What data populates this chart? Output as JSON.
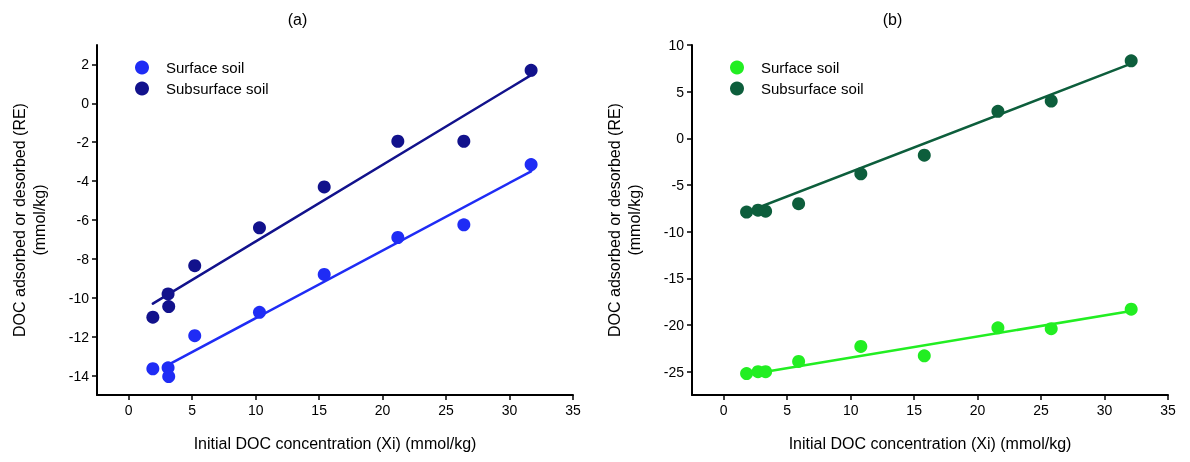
{
  "chart_data": [
    {
      "type": "scatter",
      "title": "(a)",
      "xlabel": "Initial DOC concentration (Xi) (mmol/kg)",
      "ylabel": "DOC adsorbed or desorbed (RE)\n(mmol/kg)",
      "xlim": [
        -2.5,
        35
      ],
      "ylim": [
        -15,
        3
      ],
      "xticks": [
        0,
        5,
        10,
        15,
        20,
        25,
        30,
        35
      ],
      "yticks": [
        -14,
        -12,
        -10,
        -8,
        -6,
        -4,
        -2,
        0,
        2
      ],
      "grid": false,
      "legend": "top left",
      "marker": "circle",
      "series": [
        {
          "name": "Surface soil",
          "color": "#1f2cf5",
          "x": [
            1.9,
            3.1,
            3.15,
            5.2,
            10.3,
            15.4,
            21.2,
            26.4,
            31.7
          ],
          "values": [
            -13.65,
            -13.6,
            -14.05,
            -11.95,
            -10.75,
            -8.8,
            -6.9,
            -6.25,
            -3.15
          ]
        },
        {
          "name": "Subsurface soil",
          "color": "#12128c",
          "x": [
            1.9,
            3.1,
            3.15,
            5.2,
            10.3,
            15.4,
            21.2,
            26.4,
            31.7
          ],
          "values": [
            -11,
            -9.8,
            -10.45,
            -8.35,
            -6.4,
            -4.3,
            -1.95,
            -1.95,
            1.7
          ]
        },
        {
          "type": "line",
          "marker": "none",
          "color": "#1f2cf5",
          "x": [
            3.1,
            31.7
          ],
          "values": [
            -13.45,
            -3.5
          ]
        },
        {
          "type": "line",
          "marker": "none",
          "color": "#12128c",
          "x": [
            1.9,
            31.7
          ],
          "values": [
            -10.3,
            1.45
          ]
        }
      ]
    },
    {
      "type": "scatter",
      "title": "(b)",
      "xlabel": "Initial DOC concentration (Xi) (mmol/kg)",
      "ylabel": "DOC adsorbed or desorbed (RE)\n(mmol/kg)",
      "xlim": [
        -2.5,
        35
      ],
      "ylim": [
        -27.5,
        10
      ],
      "xticks": [
        0,
        5,
        10,
        15,
        20,
        25,
        30,
        35
      ],
      "yticks": [
        -25,
        -20,
        -15,
        -10,
        -5,
        0,
        5,
        10
      ],
      "grid": false,
      "legend": "top left",
      "marker": "circle",
      "series": [
        {
          "name": "Surface soil",
          "color": "#22ee22",
          "x": [
            1.8,
            2.7,
            3.3,
            5.9,
            10.8,
            15.8,
            21.6,
            25.8,
            32.1
          ],
          "values": [
            -25.2,
            -25.0,
            -25.0,
            -23.9,
            -22.3,
            -23.3,
            -20.3,
            -20.4,
            -18.3
          ]
        },
        {
          "name": "Subsurface soil",
          "color": "#0d5e3c",
          "x": [
            1.8,
            2.7,
            3.3,
            5.9,
            10.8,
            15.8,
            21.6,
            25.8,
            32.1
          ],
          "values": [
            -7.9,
            -7.7,
            -7.8,
            -7.0,
            -3.8,
            -1.8,
            2.9,
            4.0,
            8.3
          ]
        },
        {
          "type": "line",
          "marker": "none",
          "color": "#22ee22",
          "x": [
            3.3,
            32.1
          ],
          "values": [
            -25.0,
            -18.5
          ]
        },
        {
          "type": "line",
          "marker": "none",
          "color": "#0d5e3c",
          "x": [
            1.8,
            32.1
          ],
          "values": [
            -7.9,
            8.0
          ]
        }
      ]
    }
  ]
}
